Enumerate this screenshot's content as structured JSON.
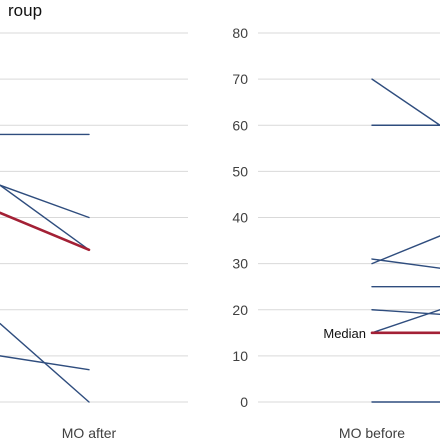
{
  "chart_data": [
    {
      "type": "line",
      "title": "roup",
      "xlabel": "",
      "ylabel": "",
      "ylim": [
        0,
        80
      ],
      "y_ticks": [],
      "categories": [
        "",
        "MO after"
      ],
      "grid": true,
      "series": [
        {
          "values": [
            58,
            58
          ],
          "color": "#2f4d7e"
        },
        {
          "values": [
            47,
            40
          ],
          "color": "#2f4d7e"
        },
        {
          "values": [
            47,
            33
          ],
          "color": "#2f4d7e"
        },
        {
          "values": [
            41,
            33
          ],
          "color": "#a32035",
          "role": "median"
        },
        {
          "values": [
            17,
            0
          ],
          "color": "#2f4d7e"
        },
        {
          "values": [
            10,
            7
          ],
          "color": "#2f4d7e"
        }
      ]
    },
    {
      "type": "line",
      "xlabel": "",
      "ylabel": "",
      "ylim": [
        0,
        80
      ],
      "y_ticks": [
        0,
        10,
        20,
        30,
        40,
        50,
        60,
        70,
        80
      ],
      "categories": [
        "MO before",
        ""
      ],
      "grid": true,
      "annotation": "Median",
      "series": [
        {
          "values": [
            70,
            60
          ],
          "color": "#2f4d7e"
        },
        {
          "values": [
            60,
            60
          ],
          "color": "#2f4d7e"
        },
        {
          "values": [
            30,
            36
          ],
          "color": "#2f4d7e"
        },
        {
          "values": [
            31,
            29
          ],
          "color": "#2f4d7e"
        },
        {
          "values": [
            25,
            25
          ],
          "color": "#2f4d7e"
        },
        {
          "values": [
            20,
            19
          ],
          "color": "#2f4d7e"
        },
        {
          "values": [
            15,
            20
          ],
          "color": "#2f4d7e"
        },
        {
          "values": [
            15,
            15
          ],
          "color": "#a32035",
          "role": "median"
        },
        {
          "values": [
            0,
            0
          ],
          "color": "#2f4d7e"
        }
      ]
    }
  ]
}
